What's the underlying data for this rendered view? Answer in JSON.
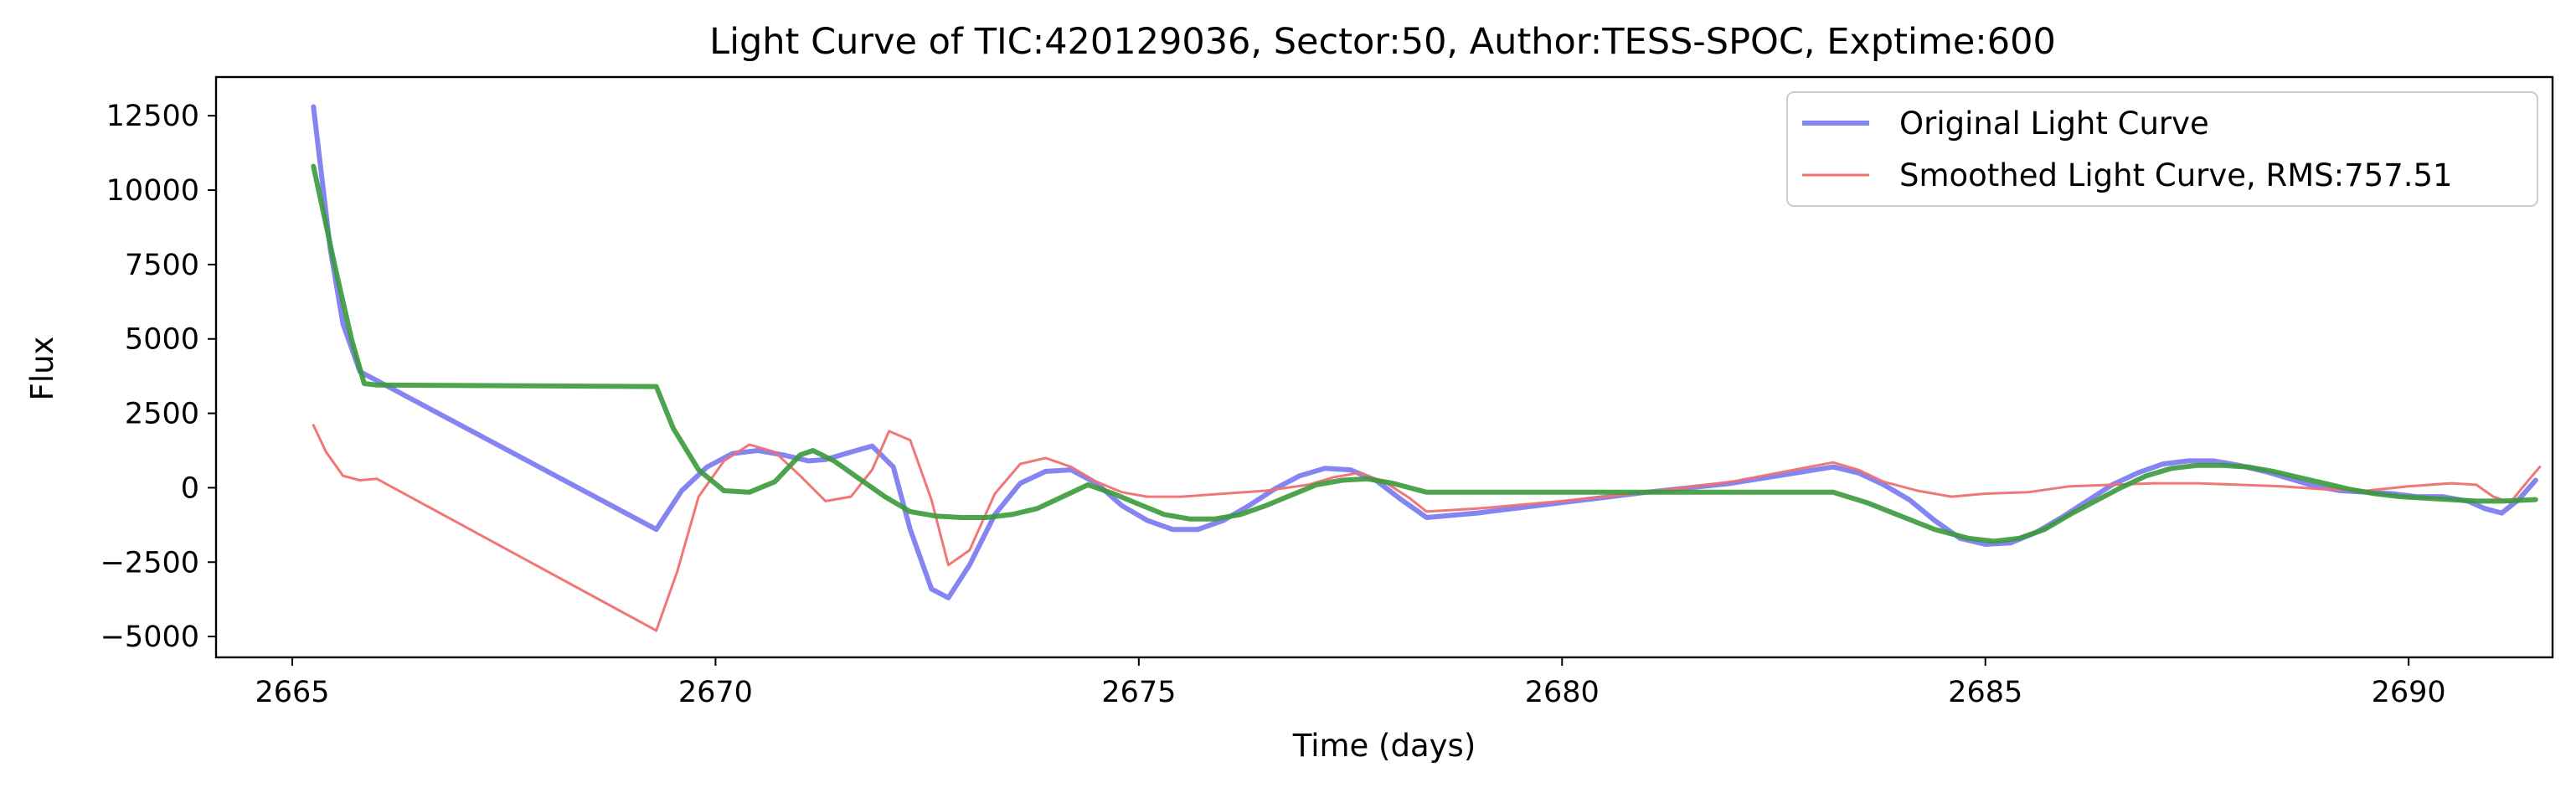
{
  "chart_data": {
    "type": "line",
    "title": "Light Curve of TIC:420129036, Sector:50, Author:TESS-SPOC, Exptime:600",
    "xlabel": "Time (days)",
    "ylabel": "Flux",
    "xlim": [
      2664.1,
      2691.7
    ],
    "ylim": [
      -5700,
      13800
    ],
    "xticks": [
      2665,
      2670,
      2675,
      2680,
      2685,
      2690
    ],
    "yticks": [
      -5000,
      -2500,
      0,
      2500,
      5000,
      7500,
      10000,
      12500
    ],
    "grid": false,
    "legend_position": "top-right",
    "series": [
      {
        "name": "Original Light Curve",
        "color": "#7070f0",
        "x": [
          2665.25,
          2665.45,
          2665.6,
          2665.8,
          2666.0,
          2669.3,
          2669.6,
          2669.9,
          2670.2,
          2670.5,
          2670.8,
          2671.1,
          2671.3,
          2671.6,
          2671.85,
          2672.1,
          2672.3,
          2672.55,
          2672.75,
          2673.0,
          2673.3,
          2673.6,
          2673.9,
          2674.2,
          2674.5,
          2674.8,
          2675.1,
          2675.4,
          2675.7,
          2676.0,
          2676.3,
          2676.6,
          2676.9,
          2677.2,
          2677.5,
          2677.8,
          2678.1,
          2678.4,
          2679.0,
          2680.0,
          2681.0,
          2682.0,
          2683.2,
          2683.5,
          2683.8,
          2684.1,
          2684.4,
          2684.7,
          2685.0,
          2685.3,
          2685.6,
          2685.9,
          2686.2,
          2686.5,
          2686.8,
          2687.1,
          2687.4,
          2687.7,
          2688.0,
          2688.3,
          2688.6,
          2688.9,
          2689.2,
          2689.5,
          2689.8,
          2690.1,
          2690.4,
          2690.7,
          2690.9,
          2691.1,
          2691.3,
          2691.5
        ],
        "y": [
          12800,
          8000,
          5500,
          3900,
          3600,
          -1400,
          -100,
          700,
          1150,
          1250,
          1100,
          900,
          950,
          1200,
          1400,
          700,
          -1400,
          -3400,
          -3700,
          -2600,
          -900,
          150,
          550,
          600,
          150,
          -600,
          -1100,
          -1400,
          -1400,
          -1100,
          -600,
          -50,
          400,
          650,
          600,
          250,
          -400,
          -1000,
          -850,
          -500,
          -150,
          150,
          700,
          500,
          100,
          -400,
          -1100,
          -1700,
          -1900,
          -1850,
          -1500,
          -1000,
          -450,
          100,
          500,
          800,
          900,
          900,
          750,
          550,
          300,
          50,
          -100,
          -150,
          -200,
          -300,
          -300,
          -450,
          -700,
          -850,
          -400,
          250
        ]
      },
      {
        "name": "Smoothed Light Curve, RMS:757.51",
        "color": "#f07070",
        "x": [
          2665.25,
          2665.4,
          2665.6,
          2665.8,
          2666.0,
          2669.3,
          2669.55,
          2669.8,
          2670.1,
          2670.4,
          2670.7,
          2671.0,
          2671.3,
          2671.6,
          2671.85,
          2672.05,
          2672.3,
          2672.55,
          2672.75,
          2673.0,
          2673.3,
          2673.6,
          2673.9,
          2674.2,
          2674.5,
          2674.8,
          2675.1,
          2675.5,
          2676.0,
          2676.5,
          2677.0,
          2677.3,
          2677.6,
          2677.9,
          2678.2,
          2678.4,
          2679.0,
          2680.0,
          2681.0,
          2682.0,
          2683.2,
          2683.5,
          2683.8,
          2684.2,
          2684.6,
          2685.0,
          2685.5,
          2686.0,
          2686.5,
          2687.0,
          2687.5,
          2688.0,
          2688.5,
          2689.0,
          2689.5,
          2690.0,
          2690.5,
          2690.8,
          2691.0,
          2691.2,
          2691.4,
          2691.55
        ],
        "y": [
          2100,
          1200,
          400,
          250,
          300,
          -4800,
          -2800,
          -300,
          900,
          1450,
          1200,
          400,
          -450,
          -300,
          600,
          1900,
          1600,
          -400,
          -2600,
          -2100,
          -200,
          800,
          1000,
          700,
          200,
          -150,
          -300,
          -300,
          -200,
          -100,
          100,
          350,
          500,
          200,
          -350,
          -800,
          -700,
          -450,
          -150,
          200,
          850,
          600,
          200,
          -100,
          -300,
          -200,
          -150,
          50,
          100,
          150,
          150,
          100,
          50,
          -50,
          -100,
          50,
          150,
          100,
          -300,
          -500,
          200,
          700
        ]
      },
      {
        "color": "#3a9a3a",
        "x": [
          2665.25,
          2665.5,
          2665.7,
          2665.85,
          2666.0,
          2669.3,
          2669.5,
          2669.8,
          2670.1,
          2670.4,
          2670.7,
          2671.0,
          2671.15,
          2671.4,
          2671.7,
          2672.0,
          2672.3,
          2672.6,
          2672.9,
          2673.2,
          2673.5,
          2673.8,
          2674.1,
          2674.4,
          2674.7,
          2675.0,
          2675.3,
          2675.6,
          2675.9,
          2676.2,
          2676.5,
          2676.8,
          2677.1,
          2677.4,
          2677.7,
          2678.0,
          2678.4,
          2680.0,
          2681.5,
          2683.2,
          2683.6,
          2684.0,
          2684.4,
          2684.8,
          2685.1,
          2685.4,
          2685.7,
          2686.0,
          2686.3,
          2686.6,
          2686.9,
          2687.2,
          2687.5,
          2687.8,
          2688.1,
          2688.4,
          2688.7,
          2689.0,
          2689.3,
          2689.6,
          2689.9,
          2690.2,
          2690.5,
          2690.8,
          2691.1,
          2691.5
        ],
        "y": [
          10800,
          7500,
          5000,
          3500,
          3450,
          3400,
          2000,
          600,
          -100,
          -150,
          200,
          1100,
          1250,
          900,
          300,
          -300,
          -800,
          -950,
          -1000,
          -1000,
          -900,
          -700,
          -300,
          100,
          -200,
          -550,
          -900,
          -1050,
          -1050,
          -900,
          -600,
          -250,
          100,
          250,
          300,
          150,
          -150,
          -150,
          -150,
          -150,
          -500,
          -950,
          -1400,
          -1700,
          -1800,
          -1700,
          -1400,
          -900,
          -450,
          0,
          400,
          650,
          750,
          750,
          700,
          550,
          350,
          150,
          -50,
          -200,
          -300,
          -350,
          -400,
          -450,
          -450,
          -400
        ]
      }
    ]
  }
}
